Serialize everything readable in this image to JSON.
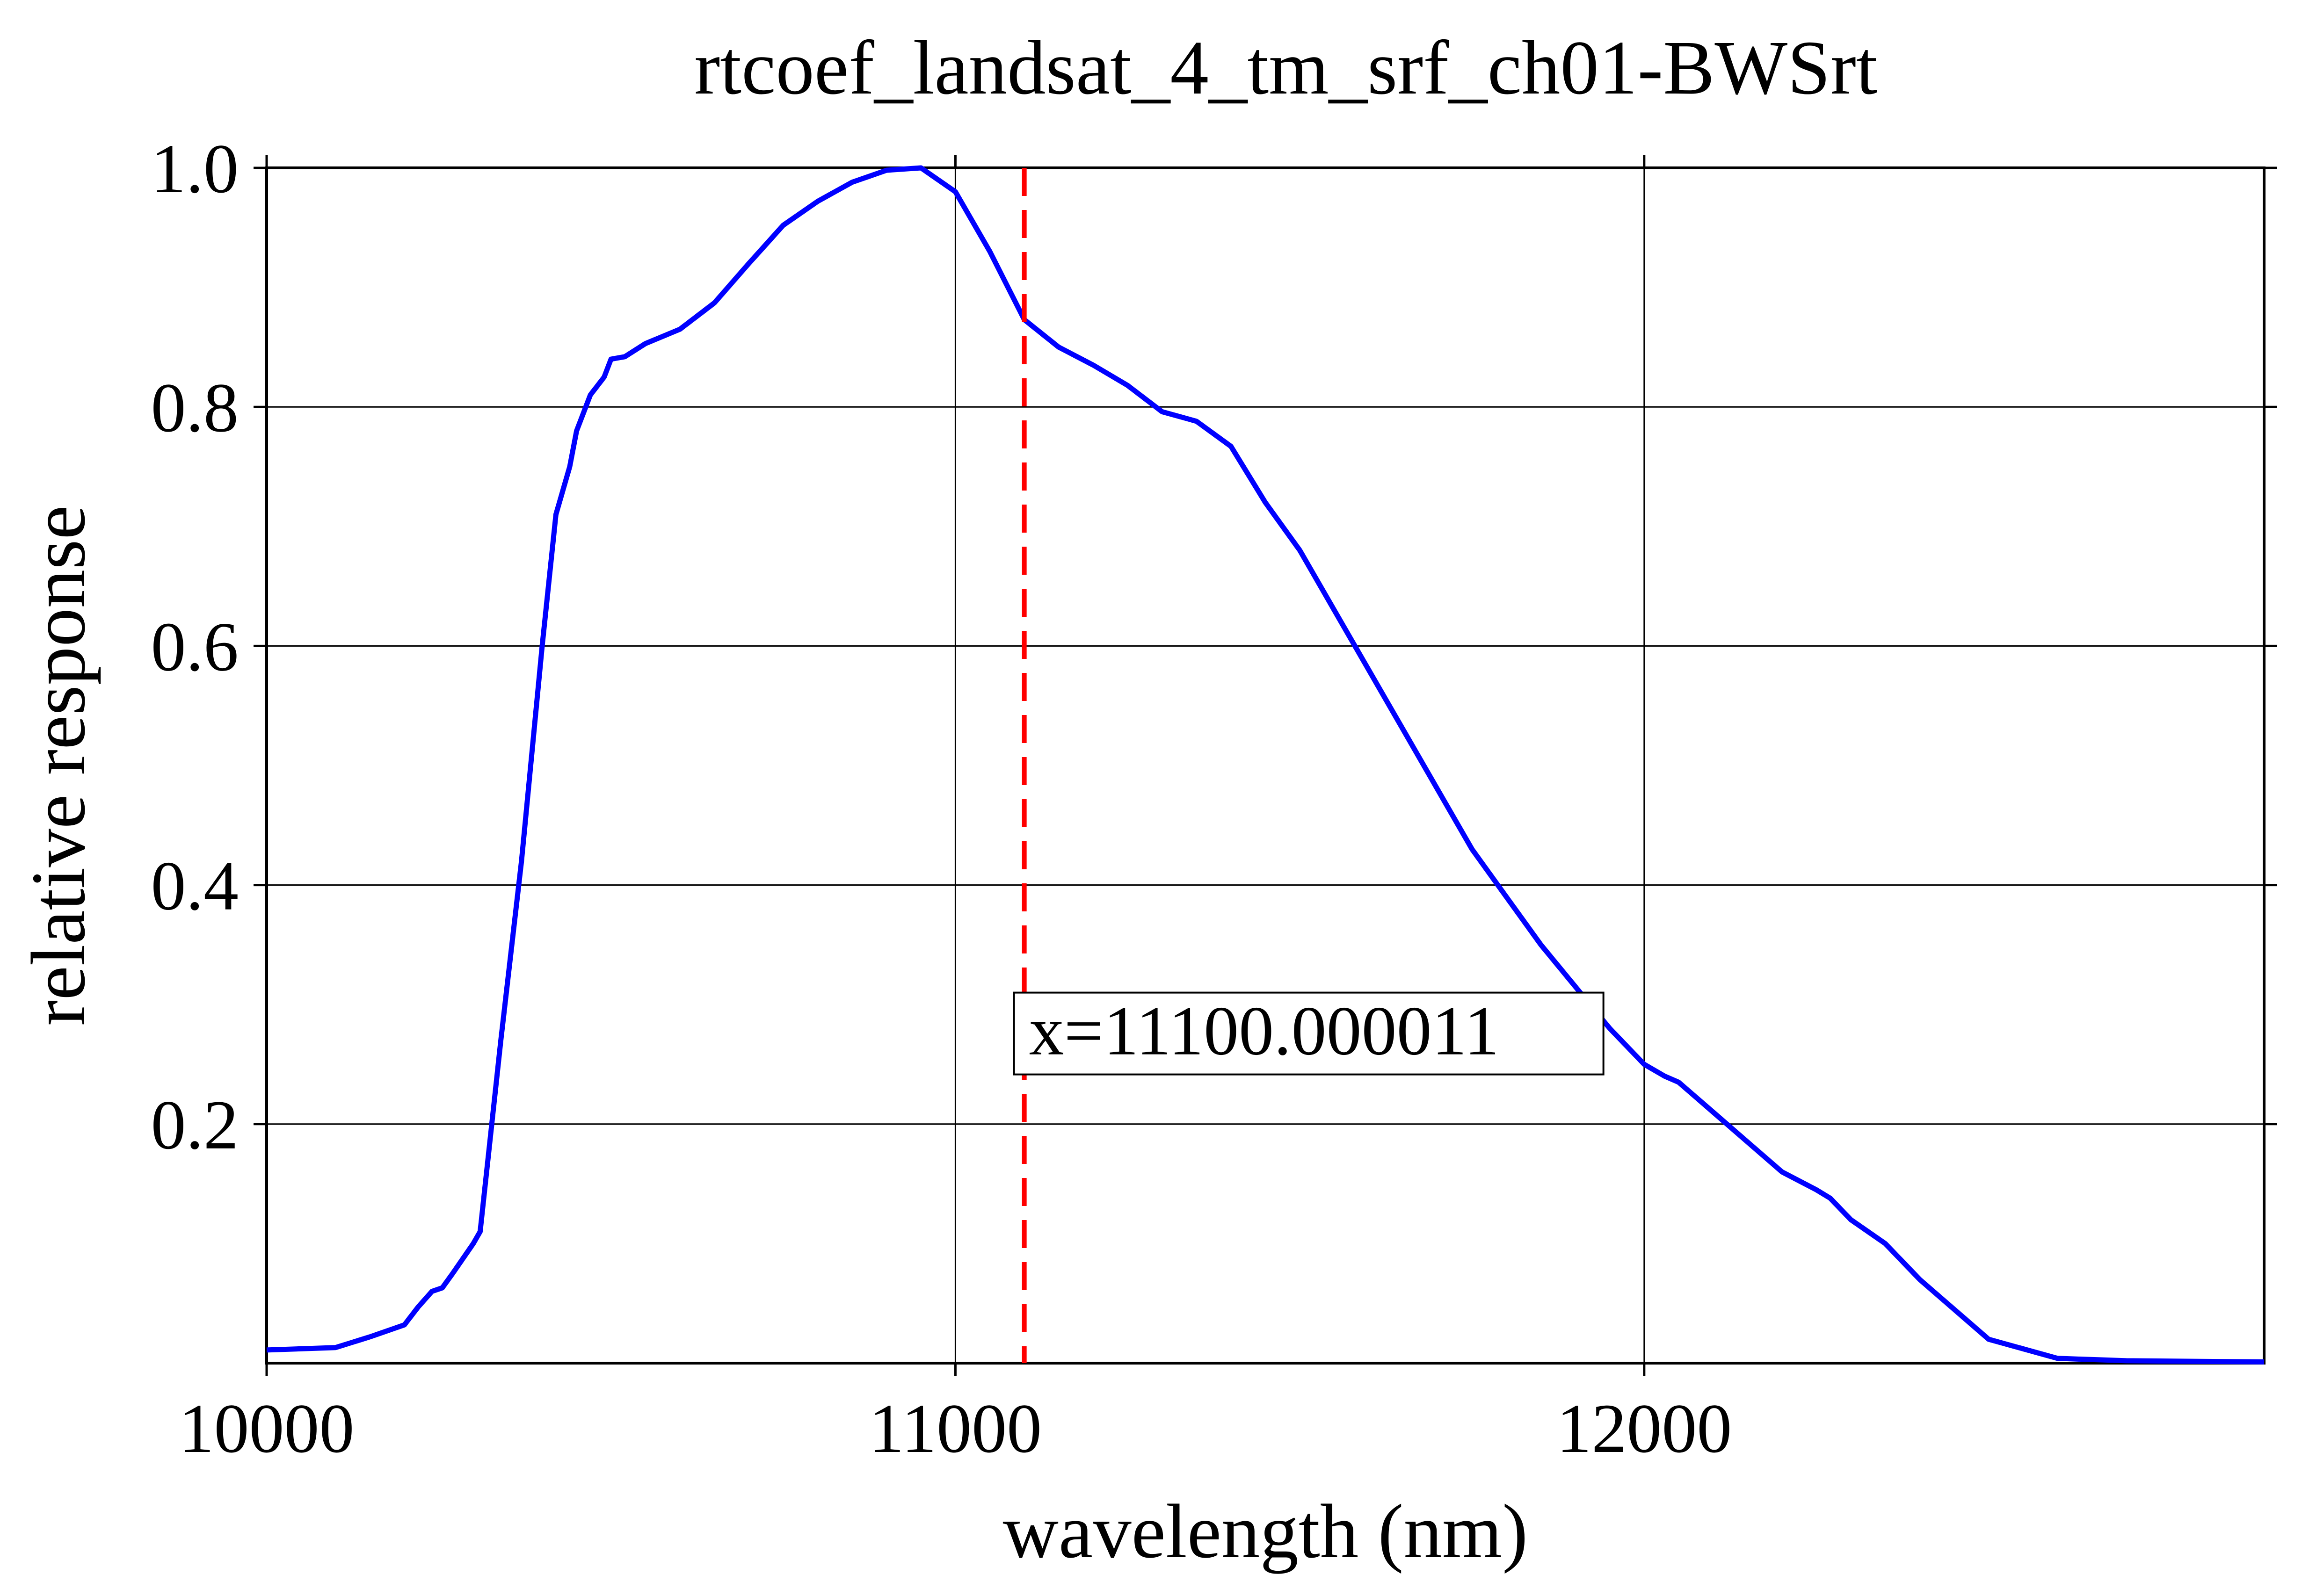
{
  "chart_data": {
    "type": "line",
    "title": "rtcoef_landsat_4_tm_srf_ch01-BWSrt",
    "xlabel": "wavelength (nm)",
    "ylabel": "relative response",
    "xlim": [
      10000,
      12900
    ],
    "ylim": [
      0,
      1.0
    ],
    "xticks": [
      10000,
      11000,
      12000
    ],
    "xtick_labels": [
      "10000",
      "11000",
      "12000"
    ],
    "yticks": [
      0.2,
      0.4,
      0.6,
      0.8,
      1.0
    ],
    "ytick_labels": [
      "0.2",
      "0.4",
      "0.6",
      "0.8",
      "1.0"
    ],
    "grid": true,
    "series": [
      {
        "color": "#0000ff",
        "x": [
          10000,
          10100,
          10150,
          10200,
          10220,
          10240,
          10255,
          10270,
          10300,
          10310,
          10340,
          10370,
          10400,
          10420,
          10440,
          10450,
          10470,
          10490,
          10500,
          10520,
          10550,
          10600,
          10650,
          10700,
          10750,
          10800,
          10850,
          10900,
          10950,
          11000,
          11050,
          11100,
          11150,
          11200,
          11250,
          11300,
          11350,
          11400,
          11450,
          11500,
          11550,
          11600,
          11650,
          11700,
          11750,
          11800,
          11850,
          11900,
          11950,
          12000,
          12030,
          12050,
          12070,
          12100,
          12150,
          12200,
          12250,
          12270,
          12300,
          12350,
          12400,
          12500,
          12600,
          12700,
          12900
        ],
        "y": [
          0.011,
          0.013,
          0.022,
          0.032,
          0.047,
          0.06,
          0.063,
          0.075,
          0.1,
          0.11,
          0.27,
          0.42,
          0.6,
          0.71,
          0.75,
          0.78,
          0.81,
          0.825,
          0.84,
          0.842,
          0.853,
          0.865,
          0.887,
          0.92,
          0.952,
          0.972,
          0.988,
          0.998,
          1.0,
          0.98,
          0.93,
          0.873,
          0.85,
          0.835,
          0.818,
          0.796,
          0.788,
          0.767,
          0.72,
          0.68,
          0.63,
          0.58,
          0.53,
          0.48,
          0.43,
          0.39,
          0.35,
          0.315,
          0.28,
          0.25,
          0.24,
          0.235,
          0.225,
          0.21,
          0.185,
          0.16,
          0.145,
          0.138,
          0.12,
          0.1,
          0.07,
          0.02,
          0.004,
          0.002,
          0.001
        ]
      }
    ],
    "annotation": {
      "x": 11100.000011,
      "label": "x=11100.000011",
      "color": "#ff0000",
      "style": "dashed"
    }
  }
}
